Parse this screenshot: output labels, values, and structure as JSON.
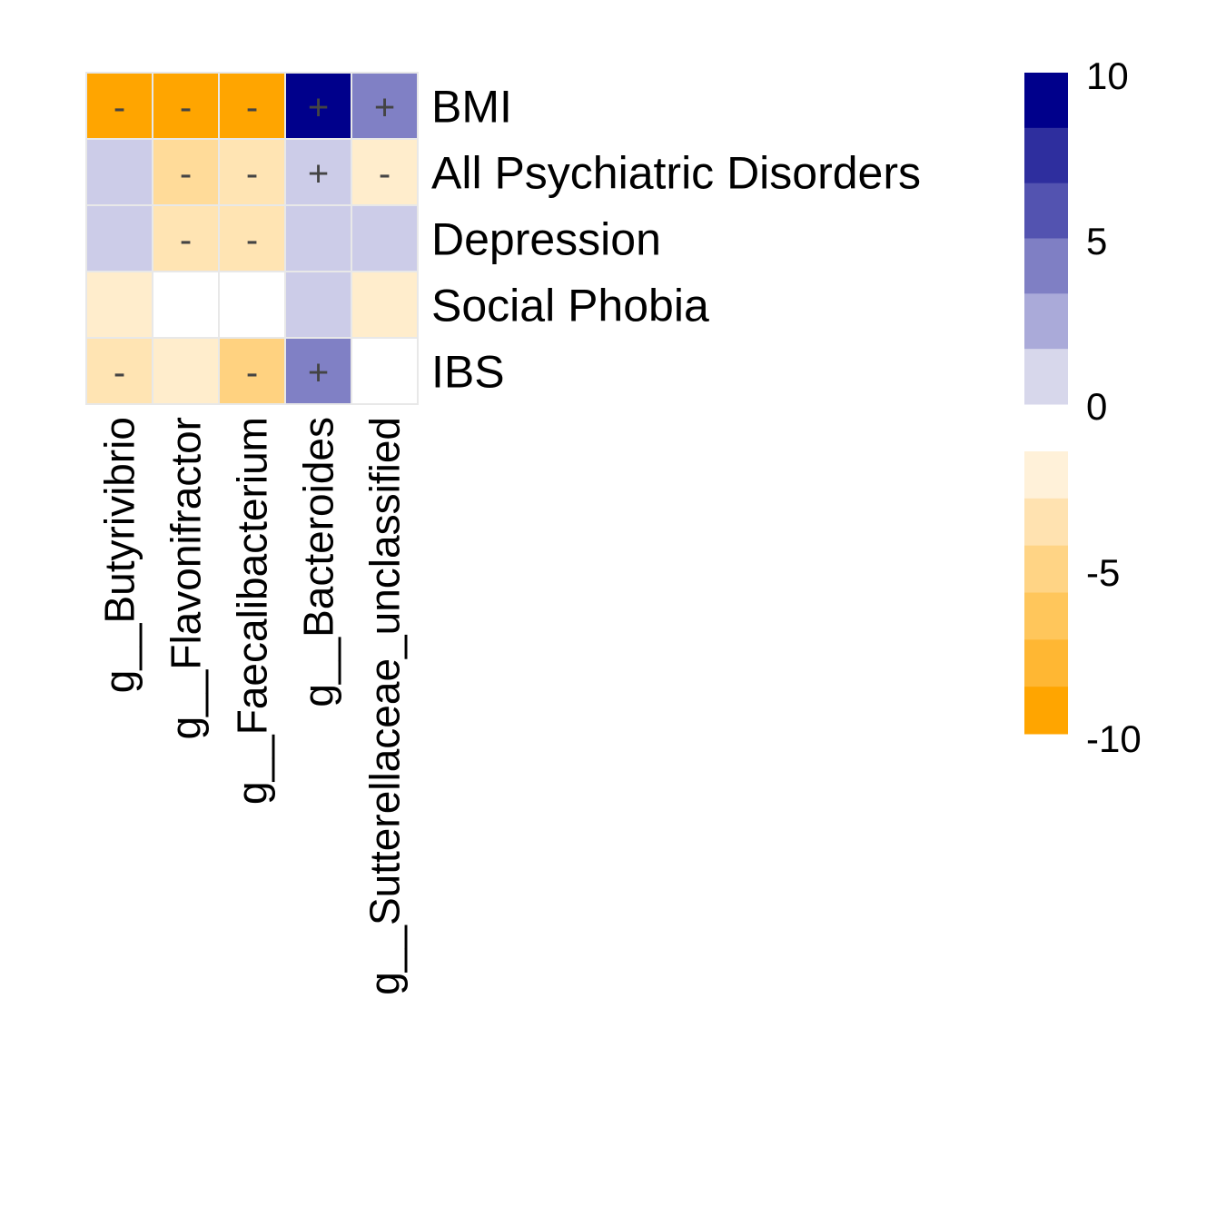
{
  "chart_data": {
    "type": "heatmap",
    "rows": [
      "BMI",
      "All Psychiatric Disorders",
      "Depression",
      "Social Phobia",
      "IBS"
    ],
    "columns": [
      "g__Butyrivibrio",
      "g__Flavonifractor",
      "g__Faecalibacterium",
      "g__Bacteroides",
      "g__Sutterellaceae_unclassified"
    ],
    "values": [
      [
        -10,
        -10,
        -10,
        10,
        5
      ],
      [
        2,
        -4,
        -3,
        2,
        -2
      ],
      [
        2,
        -3,
        -3,
        2,
        2
      ],
      [
        -2,
        0,
        0,
        2,
        -2
      ],
      [
        -3,
        -2,
        -5,
        5,
        0
      ]
    ],
    "annotations": [
      [
        "-",
        "-",
        "-",
        "+",
        "+"
      ],
      [
        "",
        "-",
        "-",
        "+",
        "-"
      ],
      [
        "",
        "-",
        "-",
        "",
        ""
      ],
      [
        "",
        "",
        "",
        "",
        ""
      ],
      [
        "-",
        "",
        "-",
        "+",
        ""
      ]
    ],
    "legend": {
      "positive": {
        "ticks": [
          "10",
          "5",
          "0"
        ],
        "colors": [
          "#00008B",
          "#2E2E9E",
          "#5353B0",
          "#7F7FC4",
          "#AAAAD9",
          "#D7D7EB"
        ]
      },
      "negative": {
        "ticks": [
          "-5",
          "-10"
        ],
        "colors": [
          "#FFF1D9",
          "#FFE2B0",
          "#FFD485",
          "#FFC65B",
          "#FFB733",
          "#FFA500"
        ]
      }
    },
    "cell_border_color": "#e8e8e8"
  }
}
